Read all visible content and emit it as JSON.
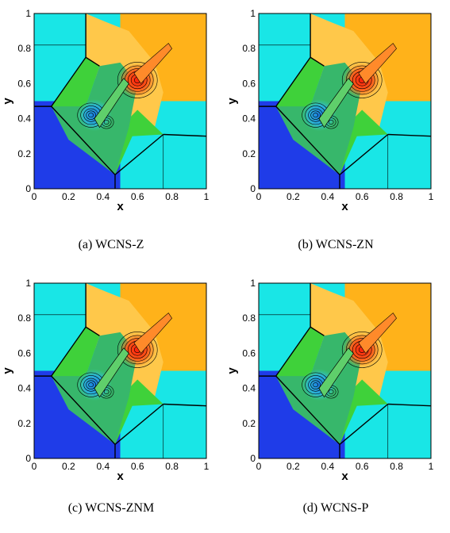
{
  "figure": {
    "panels": [
      {
        "caption": "(a) WCNS-Z"
      },
      {
        "caption": "(b) WCNS-ZN"
      },
      {
        "caption": "(c) WCNS-ZNM"
      },
      {
        "caption": "(d) WCNS-P"
      }
    ],
    "axes": {
      "xlabel": "x",
      "ylabel": "y",
      "xticks": [
        "0",
        "0.2",
        "0.4",
        "0.6",
        "0.8",
        "1"
      ],
      "yticks": [
        "0",
        "0.2",
        "0.4",
        "0.6",
        "0.8",
        "1"
      ]
    },
    "colors": {
      "cyan": "#19e6e6",
      "blue": "#1f3ce8",
      "orange": "#ffb21a",
      "light_orange": "#ffc84a",
      "green": "#3fd13a",
      "mid_green": "#37b76b",
      "red": "#ff4a1a",
      "dark_orange": "#ff8a2a"
    }
  }
}
